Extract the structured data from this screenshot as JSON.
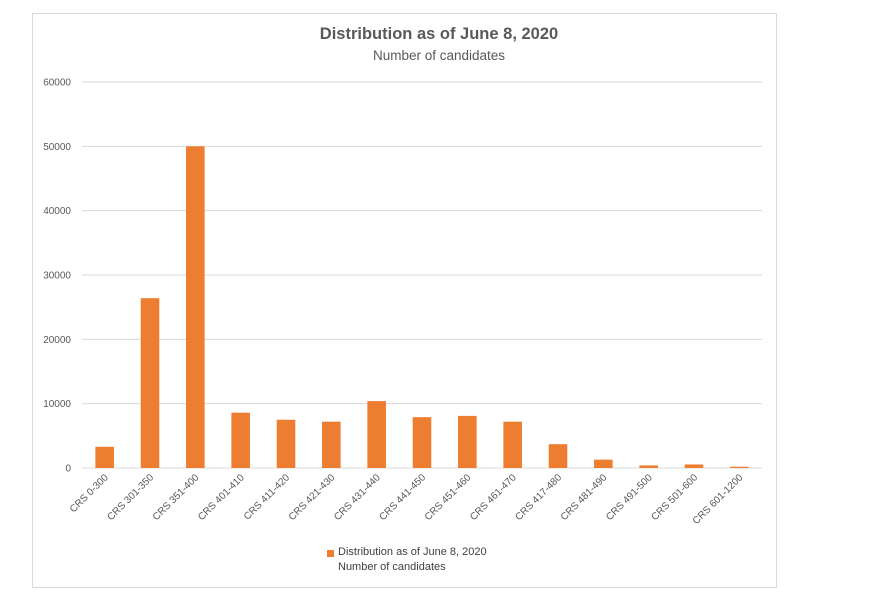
{
  "chart_data": {
    "type": "bar",
    "title": "Distribution as of June 8, 2020",
    "subtitle": "Number of candidates",
    "categories": [
      "CRS 0-300",
      "CRS 301-350",
      "CRS 351-400",
      "CRS 401-410",
      "CRS 411-420",
      "CRS 421-430",
      "CRS 431-440",
      "CRS 441-450",
      "CRS 451-460",
      "CRS 461-470",
      "CRS 417-480",
      "CRS 481-490",
      "CRS 491-500",
      "CRS 501-600",
      "CRS 601-1200"
    ],
    "series": [
      {
        "name": "Distribution as of June 8, 2020",
        "name_line2": "Number of candidates",
        "color": "#ed7d31",
        "values": [
          3300,
          26400,
          50000,
          8600,
          7500,
          7200,
          10400,
          7900,
          8100,
          7200,
          3700,
          1300,
          400,
          550,
          200
        ]
      }
    ],
    "ylim": [
      0,
      60000
    ],
    "yticks": [
      0,
      10000,
      20000,
      30000,
      40000,
      50000,
      60000
    ],
    "ytick_labels": [
      "0",
      "10000",
      "20000",
      "30000",
      "40000",
      "50000",
      "60000"
    ],
    "grid": true,
    "legend_position": "bottom"
  }
}
